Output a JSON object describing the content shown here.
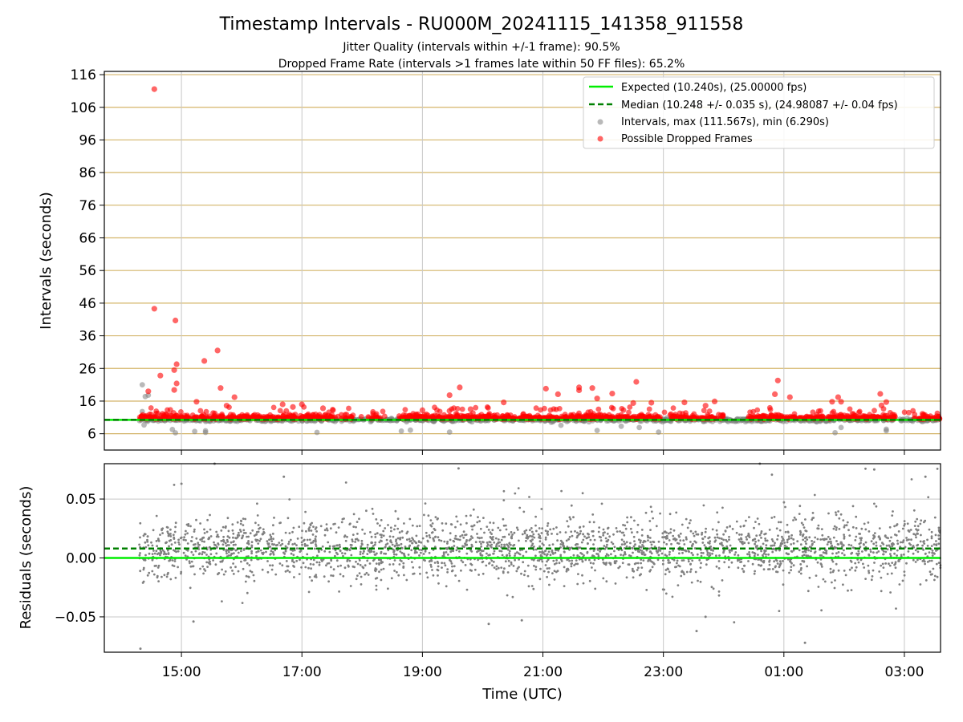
{
  "chart_data": [
    {
      "type": "scatter",
      "panel": "intervals",
      "title": "Timestamp Intervals - RU000M_20241115_141358_911558",
      "subtitle_lines": [
        "Jitter Quality (intervals within +/-1 frame): 90.5%",
        "Dropped Frame Rate (intervals >1 frames late within 50 FF files): 65.2%"
      ],
      "ylabel": "Intervals (seconds)",
      "ylim": [
        1,
        117
      ],
      "yticks": [
        6,
        16,
        26,
        36,
        46,
        56,
        66,
        76,
        86,
        96,
        106,
        116
      ],
      "ytick_labels": [
        "6",
        "16",
        "26",
        "36",
        "46",
        "56",
        "66",
        "76",
        "86",
        "96",
        "106",
        "116"
      ],
      "xlim_hours": [
        13.72,
        27.6
      ],
      "grid": "horizontal lines at y ticks (tan), vertical lines at x ticks (gray)",
      "legend_position": "top-right",
      "legend": [
        "Expected (10.240s), (25.00000 fps)",
        "Median (10.248 +/- 0.035 s), (24.98087 +/- 0.04 fps)",
        "Intervals, max (111.567s), min (6.290s)",
        "Possible Dropped Frames"
      ],
      "expected_interval": 10.24,
      "median_interval": 10.248,
      "max_interval": 111.567,
      "min_interval": 6.29,
      "dropped_outliers": [
        {
          "t": 14.55,
          "y": 111.567
        },
        {
          "t": 14.55,
          "y": 44.3
        },
        {
          "t": 14.9,
          "y": 40.7
        },
        {
          "t": 14.92,
          "y": 27.3
        },
        {
          "t": 14.88,
          "y": 25.5
        },
        {
          "t": 14.92,
          "y": 21.4
        },
        {
          "t": 14.88,
          "y": 19.4
        },
        {
          "t": 14.45,
          "y": 19.0
        },
        {
          "t": 14.65,
          "y": 23.8
        },
        {
          "t": 15.38,
          "y": 28.3
        },
        {
          "t": 15.6,
          "y": 31.5
        },
        {
          "t": 15.65,
          "y": 20.0
        },
        {
          "t": 15.88,
          "y": 17.2
        },
        {
          "t": 15.25,
          "y": 15.8
        },
        {
          "t": 15.75,
          "y": 14.6
        },
        {
          "t": 16.68,
          "y": 15.0
        },
        {
          "t": 16.85,
          "y": 14.2
        },
        {
          "t": 17.0,
          "y": 15.0
        },
        {
          "t": 17.35,
          "y": 13.8
        },
        {
          "t": 19.0,
          "y": 13.2
        },
        {
          "t": 19.45,
          "y": 17.8
        },
        {
          "t": 19.62,
          "y": 20.2
        },
        {
          "t": 19.8,
          "y": 13.5
        },
        {
          "t": 20.35,
          "y": 15.6
        },
        {
          "t": 21.05,
          "y": 19.8
        },
        {
          "t": 21.25,
          "y": 18.1
        },
        {
          "t": 21.6,
          "y": 20.2
        },
        {
          "t": 21.6,
          "y": 19.3
        },
        {
          "t": 21.82,
          "y": 20.0
        },
        {
          "t": 21.9,
          "y": 16.8
        },
        {
          "t": 22.15,
          "y": 18.3
        },
        {
          "t": 22.55,
          "y": 21.9
        },
        {
          "t": 22.5,
          "y": 15.4
        },
        {
          "t": 22.8,
          "y": 15.5
        },
        {
          "t": 23.35,
          "y": 15.6
        },
        {
          "t": 23.7,
          "y": 14.6
        },
        {
          "t": 23.85,
          "y": 15.9
        },
        {
          "t": 24.85,
          "y": 18.1
        },
        {
          "t": 25.1,
          "y": 17.2
        },
        {
          "t": 24.9,
          "y": 22.3
        },
        {
          "t": 25.95,
          "y": 15.8
        },
        {
          "t": 25.9,
          "y": 17.2
        },
        {
          "t": 25.8,
          "y": 15.8
        },
        {
          "t": 26.6,
          "y": 18.2
        },
        {
          "t": 26.7,
          "y": 15.7
        },
        {
          "t": 26.62,
          "y": 14.7
        },
        {
          "t": 27.3,
          "y": 12.1
        }
      ],
      "regular_outliers": [
        {
          "t": 14.35,
          "y": 21.0
        },
        {
          "t": 14.4,
          "y": 17.4
        },
        {
          "t": 14.45,
          "y": 17.8
        },
        {
          "t": 14.35,
          "y": 12.8
        },
        {
          "t": 14.38,
          "y": 8.7
        },
        {
          "t": 14.85,
          "y": 7.3
        },
        {
          "t": 14.9,
          "y": 6.29
        },
        {
          "t": 15.22,
          "y": 6.7
        },
        {
          "t": 15.4,
          "y": 6.4
        },
        {
          "t": 15.4,
          "y": 6.9
        },
        {
          "t": 17.25,
          "y": 6.4
        },
        {
          "t": 18.65,
          "y": 6.8
        },
        {
          "t": 18.8,
          "y": 7.1
        },
        {
          "t": 19.45,
          "y": 6.5
        },
        {
          "t": 21.3,
          "y": 8.6
        },
        {
          "t": 21.9,
          "y": 7.0
        },
        {
          "t": 22.3,
          "y": 8.3
        },
        {
          "t": 22.6,
          "y": 7.9
        },
        {
          "t": 22.92,
          "y": 6.5
        },
        {
          "t": 25.85,
          "y": 6.3
        },
        {
          "t": 25.95,
          "y": 7.9
        },
        {
          "t": 26.7,
          "y": 6.9
        },
        {
          "t": 26.7,
          "y": 7.4
        }
      ],
      "series_time_range_hours": [
        14.3,
        27.6
      ],
      "colors": {
        "intervals": "#808080",
        "dropped": "#ff0000",
        "expected": "#00ee00",
        "median": "#008000",
        "y_grid": "#d4b56a",
        "x_grid": "#c8c8c8"
      }
    },
    {
      "type": "scatter",
      "panel": "residuals",
      "ylabel": "Residuals (seconds)",
      "xlabel": "Time (UTC)",
      "ylim": [
        -0.08,
        0.08
      ],
      "yticks": [
        -0.05,
        0.0,
        0.05
      ],
      "ytick_labels": [
        "−0.05",
        "0.00",
        "0.05"
      ],
      "xlim_hours": [
        13.72,
        27.6
      ],
      "xticks_hours": [
        15,
        17,
        19,
        21,
        23,
        25,
        27
      ],
      "xtick_labels": [
        "15:00",
        "17:00",
        "19:00",
        "21:00",
        "23:00",
        "01:00",
        "03:00"
      ],
      "expected_residual": 0.0,
      "median_residual": 0.008,
      "residual_spread": "most points between -0.03 and 0.03 s, sparse points out to about +/-0.08 s",
      "residual_outliers": [
        {
          "t": 14.32,
          "y": -0.077
        },
        {
          "t": 15.2,
          "y": -0.054
        },
        {
          "t": 15.0,
          "y": 0.063
        },
        {
          "t": 15.55,
          "y": 0.08
        },
        {
          "t": 16.7,
          "y": 0.069
        },
        {
          "t": 19.6,
          "y": 0.076
        },
        {
          "t": 20.1,
          "y": -0.056
        },
        {
          "t": 20.65,
          "y": -0.053
        },
        {
          "t": 23.55,
          "y": -0.062
        },
        {
          "t": 23.7,
          "y": -0.05
        },
        {
          "t": 24.6,
          "y": 0.08
        },
        {
          "t": 25.35,
          "y": -0.072
        },
        {
          "t": 26.5,
          "y": 0.075
        },
        {
          "t": 27.35,
          "y": 0.069
        }
      ],
      "colors": {
        "residuals": "#808080",
        "expected": "#00ee00",
        "median": "#008000",
        "grid": "#c8c8c8"
      }
    }
  ]
}
